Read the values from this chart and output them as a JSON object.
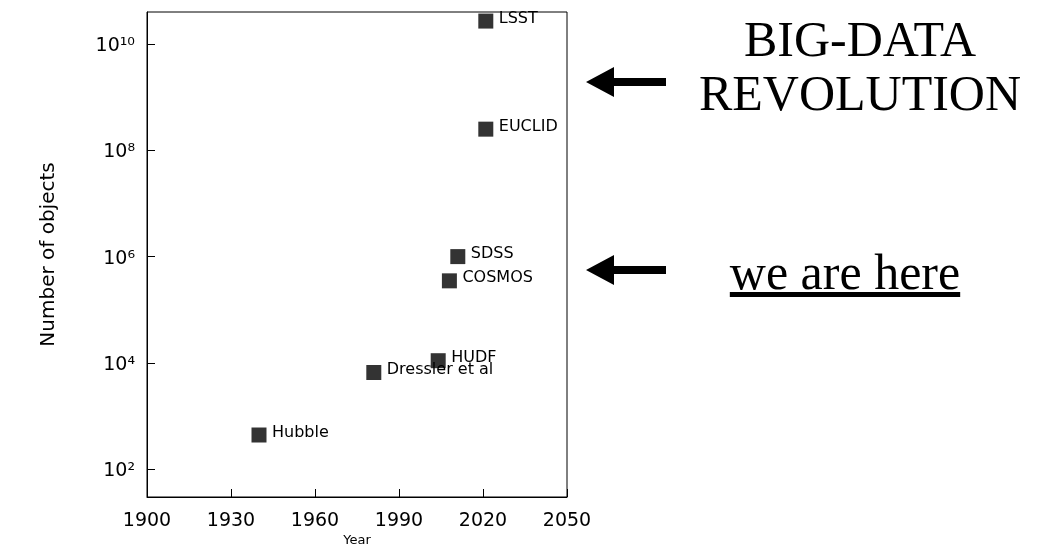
{
  "chart_data": {
    "type": "scatter",
    "xlabel": "Year",
    "ylabel": "Number of objects",
    "x": [
      1940,
      1981,
      2004,
      2008,
      2011,
      2021,
      2021
    ],
    "values": [
      440,
      6600,
      11000,
      350000,
      1000000,
      250000000,
      27000000000
    ],
    "color": "#000000",
    "marker": "square",
    "log": "y",
    "grid": false,
    "xlim": [
      1900,
      2050
    ],
    "xticks": [
      1900,
      1930,
      1960,
      1990,
      2020,
      2050
    ],
    "ylim": [
      30,
      40000000000
    ],
    "yticks": [
      {
        "value": 100,
        "label": "10²"
      },
      {
        "value": 10000,
        "label": "10⁴"
      },
      {
        "value": 1000000,
        "label": "10⁶"
      },
      {
        "value": 100000000,
        "label": "10⁸"
      },
      {
        "value": 10000000000,
        "label": "10¹⁰"
      }
    ],
    "annotations": [
      {
        "text": "Hubble",
        "x": 1940,
        "y": 440
      },
      {
        "text": "Dressler et al",
        "x": 1981,
        "y": 6600
      },
      {
        "text": "HUDF",
        "x": 2004,
        "y": 11000
      },
      {
        "text": "COSMOS",
        "x": 2008,
        "y": 350000
      },
      {
        "text": "SDSS",
        "x": 2011,
        "y": 1000000
      },
      {
        "text": "EUCLID",
        "x": 2021,
        "y": 250000000
      },
      {
        "text": "LSST",
        "x": 2021,
        "y": 27000000000
      },
      "BIG-DATA REVOLUTION",
      "we are here"
    ]
  }
}
